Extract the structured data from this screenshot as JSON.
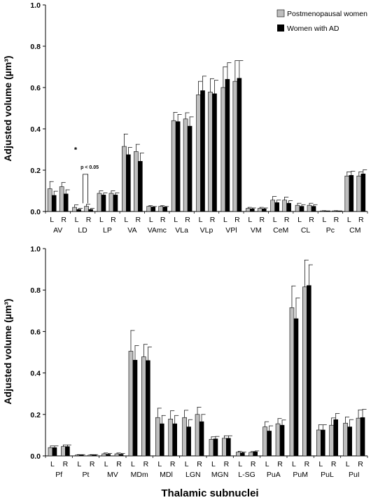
{
  "colors": {
    "postmenopausal": "#bebebe",
    "ad": "#000000",
    "axis": "#000000"
  },
  "chart_data": [
    {
      "type": "bar",
      "ylabel": "Adjusted volume (µm³)",
      "ylim": [
        0,
        1.0
      ],
      "yticks": [
        "0.0",
        "0.2",
        "0.4",
        "0.6",
        "0.8",
        "1.0"
      ],
      "legend": {
        "placement": "top-right",
        "entries": [
          "Postmenopausal women",
          "Women with AD"
        ]
      },
      "annotation": {
        "star": "*",
        "text": "p < 0.05",
        "category": "LD"
      },
      "side_labels": [
        "L",
        "R"
      ],
      "categories": [
        "AV",
        "LD",
        "LP",
        "VA",
        "VAmc",
        "VLa",
        "VLp",
        "VPl",
        "VM",
        "CeM",
        "CL",
        "Pc",
        "CM"
      ],
      "series": [
        {
          "name": "Postmenopausal women",
          "values": [
            [
              0.11,
              0.12
            ],
            [
              0.02,
              0.025
            ],
            [
              0.088,
              0.088
            ],
            [
              0.315,
              0.29
            ],
            [
              0.025,
              0.025
            ],
            [
              0.44,
              0.448
            ],
            [
              0.565,
              0.578
            ],
            [
              0.6,
              0.63
            ],
            [
              0.015,
              0.015
            ],
            [
              0.055,
              0.055
            ],
            [
              0.03,
              0.03
            ],
            [
              0.003,
              0.003
            ],
            [
              0.172,
              0.172
            ]
          ],
          "errors": [
            [
              0.035,
              0.02
            ],
            [
              0.012,
              0.01
            ],
            [
              0.012,
              0.012
            ],
            [
              0.06,
              0.035
            ],
            [
              0.003,
              0.003
            ],
            [
              0.04,
              0.03
            ],
            [
              0.065,
              0.065
            ],
            [
              0.1,
              0.1
            ],
            [
              0.005,
              0.005
            ],
            [
              0.018,
              0.015
            ],
            [
              0.01,
              0.01
            ],
            [
              0.001,
              0.001
            ],
            [
              0.02,
              0.02
            ]
          ]
        },
        {
          "name": "Women with AD",
          "values": [
            [
              0.078,
              0.085
            ],
            [
              0.01,
              0.01
            ],
            [
              0.08,
              0.08
            ],
            [
              0.275,
              0.243
            ],
            [
              0.022,
              0.022
            ],
            [
              0.435,
              0.413
            ],
            [
              0.585,
              0.57
            ],
            [
              0.64,
              0.645
            ],
            [
              0.013,
              0.013
            ],
            [
              0.043,
              0.04
            ],
            [
              0.025,
              0.025
            ],
            [
              0.002,
              0.002
            ],
            [
              0.175,
              0.182
            ]
          ],
          "errors": [
            [
              0.02,
              0.02
            ],
            [
              0.005,
              0.005
            ],
            [
              0.01,
              0.01
            ],
            [
              0.035,
              0.04
            ],
            [
              0.002,
              0.002
            ],
            [
              0.035,
              0.045
            ],
            [
              0.07,
              0.065
            ],
            [
              0.08,
              0.085
            ],
            [
              0.004,
              0.004
            ],
            [
              0.012,
              0.012
            ],
            [
              0.008,
              0.008
            ],
            [
              0.001,
              0.001
            ],
            [
              0.02,
              0.02
            ]
          ]
        }
      ]
    },
    {
      "type": "bar",
      "ylabel": "Adjusted volume (µm³)",
      "xlabel": "Thalamic subnuclei",
      "ylim": [
        0,
        1.0
      ],
      "yticks": [
        "0.0",
        "0.2",
        "0.4",
        "0.6",
        "0.8",
        "1.0"
      ],
      "side_labels": [
        "L",
        "R"
      ],
      "categories": [
        "Pf",
        "Pt",
        "MV",
        "MDm",
        "MDl",
        "LGN",
        "MGN",
        "L-SG",
        "PuA",
        "PuM",
        "PuL",
        "PuI"
      ],
      "series": [
        {
          "name": "Postmenopausal women",
          "values": [
            [
              0.04,
              0.045
            ],
            [
              0.004,
              0.004
            ],
            [
              0.01,
              0.01
            ],
            [
              0.505,
              0.478
            ],
            [
              0.185,
              0.178
            ],
            [
              0.185,
              0.2
            ],
            [
              0.08,
              0.085
            ],
            [
              0.018,
              0.017
            ],
            [
              0.14,
              0.155
            ],
            [
              0.715,
              0.815
            ],
            [
              0.125,
              0.148
            ],
            [
              0.158,
              0.182
            ]
          ],
          "errors": [
            [
              0.008,
              0.008
            ],
            [
              0.002,
              0.002
            ],
            [
              0.004,
              0.004
            ],
            [
              0.1,
              0.06
            ],
            [
              0.045,
              0.04
            ],
            [
              0.035,
              0.035
            ],
            [
              0.012,
              0.012
            ],
            [
              0.004,
              0.004
            ],
            [
              0.025,
              0.025
            ],
            [
              0.105,
              0.13
            ],
            [
              0.025,
              0.035
            ],
            [
              0.03,
              0.04
            ]
          ]
        },
        {
          "name": "Women with AD",
          "values": [
            [
              0.04,
              0.045
            ],
            [
              0.004,
              0.004
            ],
            [
              0.008,
              0.008
            ],
            [
              0.462,
              0.46
            ],
            [
              0.155,
              0.155
            ],
            [
              0.14,
              0.165
            ],
            [
              0.082,
              0.085
            ],
            [
              0.015,
              0.02
            ],
            [
              0.12,
              0.148
            ],
            [
              0.662,
              0.822
            ],
            [
              0.125,
              0.175
            ],
            [
              0.14,
              0.185
            ]
          ],
          "errors": [
            [
              0.008,
              0.008
            ],
            [
              0.002,
              0.002
            ],
            [
              0.004,
              0.004
            ],
            [
              0.07,
              0.065
            ],
            [
              0.04,
              0.04
            ],
            [
              0.035,
              0.035
            ],
            [
              0.012,
              0.012
            ],
            [
              0.004,
              0.004
            ],
            [
              0.025,
              0.025
            ],
            [
              0.1,
              0.1
            ],
            [
              0.025,
              0.03
            ],
            [
              0.035,
              0.04
            ]
          ]
        }
      ]
    }
  ]
}
